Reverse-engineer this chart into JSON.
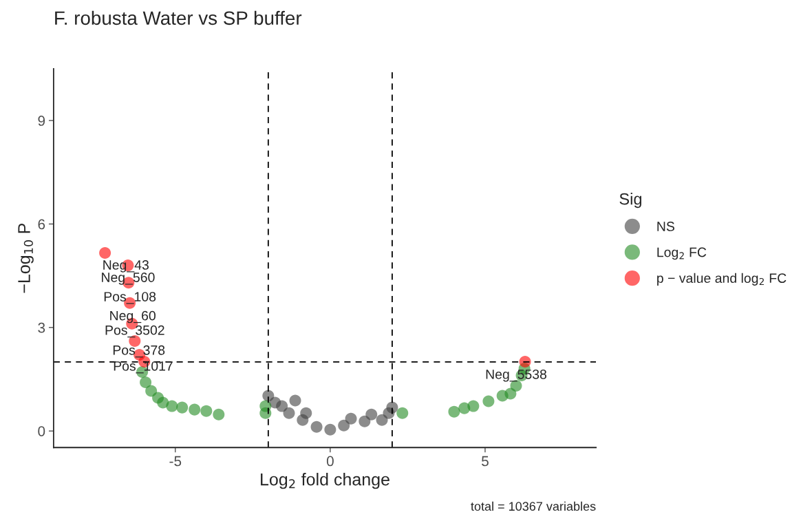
{
  "chart_data": {
    "type": "scatter",
    "title": "F. robusta Water vs SP buffer",
    "xlabel": "Log$_{2}$ fold change",
    "ylabel": "−Log$_{10}$ P",
    "legend_title": "Sig",
    "xlim": [
      -8.93,
      8.58
    ],
    "ylim": [
      -0.48,
      10.5
    ],
    "xticks": [
      -5,
      0,
      5
    ],
    "yticks": [
      0,
      3,
      6,
      9
    ],
    "grid": false,
    "legend": "right",
    "marker": "circle",
    "ref_lines": [
      {
        "axis": "x",
        "value": -2,
        "line_style": "dashed",
        "color": "#000000"
      },
      {
        "axis": "x",
        "value": 2,
        "line_style": "dashed",
        "color": "#000000"
      },
      {
        "axis": "y",
        "value": 2,
        "line_style": "dashed",
        "color": "#000000"
      }
    ],
    "series": [
      {
        "name": "NS",
        "color": "#404040",
        "x": [
          -2.0,
          -1.78,
          -1.56,
          -1.33,
          -1.13,
          -0.89,
          -0.78,
          -0.44,
          0.0,
          0.44,
          0.67,
          1.11,
          1.33,
          1.67,
          1.89,
          2.0
        ],
        "values": [
          1.02,
          0.82,
          0.72,
          0.52,
          0.88,
          0.32,
          0.52,
          0.12,
          0.04,
          0.16,
          0.36,
          0.28,
          0.48,
          0.32,
          0.52,
          0.68
        ]
      },
      {
        "name": "Log$_{2}$ FC",
        "color": "#228b22",
        "x": [
          -6.07,
          -5.96,
          -5.78,
          -5.56,
          -5.4,
          -5.11,
          -4.78,
          -4.38,
          -4.0,
          -3.6,
          -2.09,
          -2.09,
          2.33,
          4.0,
          4.33,
          4.62,
          5.11,
          5.56,
          5.82,
          6.0,
          6.18,
          6.27
        ],
        "values": [
          1.71,
          1.41,
          1.16,
          0.96,
          0.82,
          0.72,
          0.68,
          0.62,
          0.58,
          0.48,
          0.72,
          0.52,
          0.52,
          0.56,
          0.66,
          0.72,
          0.86,
          1.02,
          1.08,
          1.31,
          1.61,
          1.81
        ]
      },
      {
        "name": "p − value and log$_{2}$ FC",
        "color": "#ff0000",
        "x": [
          -7.27,
          -6.53,
          -6.51,
          -6.47,
          -6.4,
          -6.31,
          -6.16,
          -6.0,
          6.29
        ],
        "values": [
          5.16,
          4.8,
          4.3,
          3.71,
          3.11,
          2.61,
          2.21,
          2.01,
          2.01
        ]
      }
    ],
    "annotations": [
      {
        "text": "Neg_43",
        "x": -6.6,
        "y": 4.78
      },
      {
        "text": "Neg_560",
        "x": -6.53,
        "y": 4.42
      },
      {
        "text": "Pos_108",
        "x": -6.47,
        "y": 3.86
      },
      {
        "text": "Neg_60",
        "x": -6.38,
        "y": 3.31
      },
      {
        "text": "Pos_3502",
        "x": -6.31,
        "y": 2.89
      },
      {
        "text": "Pos_378",
        "x": -6.18,
        "y": 2.31
      },
      {
        "text": "Pos_1017",
        "x": -6.04,
        "y": 1.85
      },
      {
        "text": "Neg_5538",
        "x": 6.0,
        "y": 1.61
      },
      "total = 10367 variables"
    ]
  }
}
